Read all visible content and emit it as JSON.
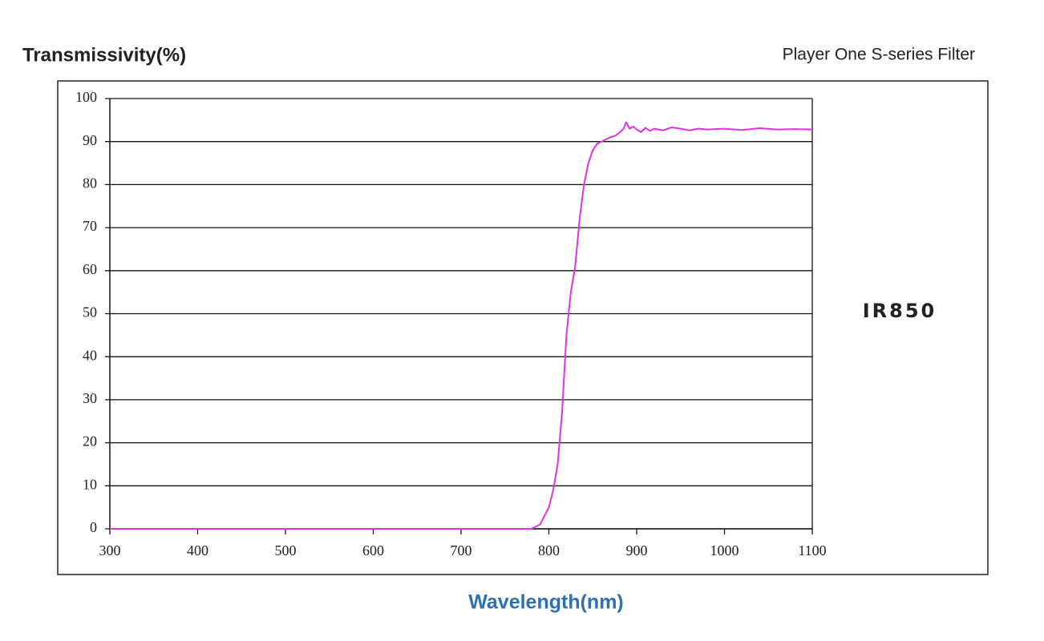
{
  "chart_data": {
    "type": "line",
    "title": "Transmissivity(%)",
    "subtitle": "Player One S-series Filter",
    "annotation": "IR850",
    "x_label": "Wavelength(nm)",
    "x": [
      300,
      400,
      500,
      600,
      700,
      780,
      790,
      800,
      805,
      810,
      815,
      820,
      825,
      830,
      835,
      840,
      845,
      850,
      855,
      860,
      865,
      870,
      875,
      880,
      885,
      888,
      892,
      896,
      900,
      905,
      910,
      915,
      920,
      930,
      940,
      950,
      960,
      970,
      980,
      1000,
      1020,
      1040,
      1060,
      1080,
      1100
    ],
    "values": [
      0,
      0,
      0,
      0,
      0,
      0,
      1,
      5,
      9,
      15,
      27,
      45,
      55,
      61,
      72,
      80,
      85,
      88,
      89.5,
      90,
      90.5,
      91,
      91.3,
      92,
      93,
      94.5,
      93,
      93.5,
      92.8,
      92.2,
      93.2,
      92.5,
      93,
      92.6,
      93.3,
      93,
      92.6,
      93,
      92.8,
      93,
      92.7,
      93.1,
      92.8,
      92.9,
      92.8
    ],
    "color": "#e033e0",
    "xlim": [
      300,
      1100
    ],
    "ylim": [
      0,
      100
    ],
    "xticks": [
      300,
      400,
      500,
      600,
      700,
      800,
      900,
      1000,
      1100
    ],
    "yticks": [
      0,
      10,
      20,
      30,
      40,
      50,
      60,
      70,
      80,
      90,
      100
    ],
    "grid": true
  }
}
